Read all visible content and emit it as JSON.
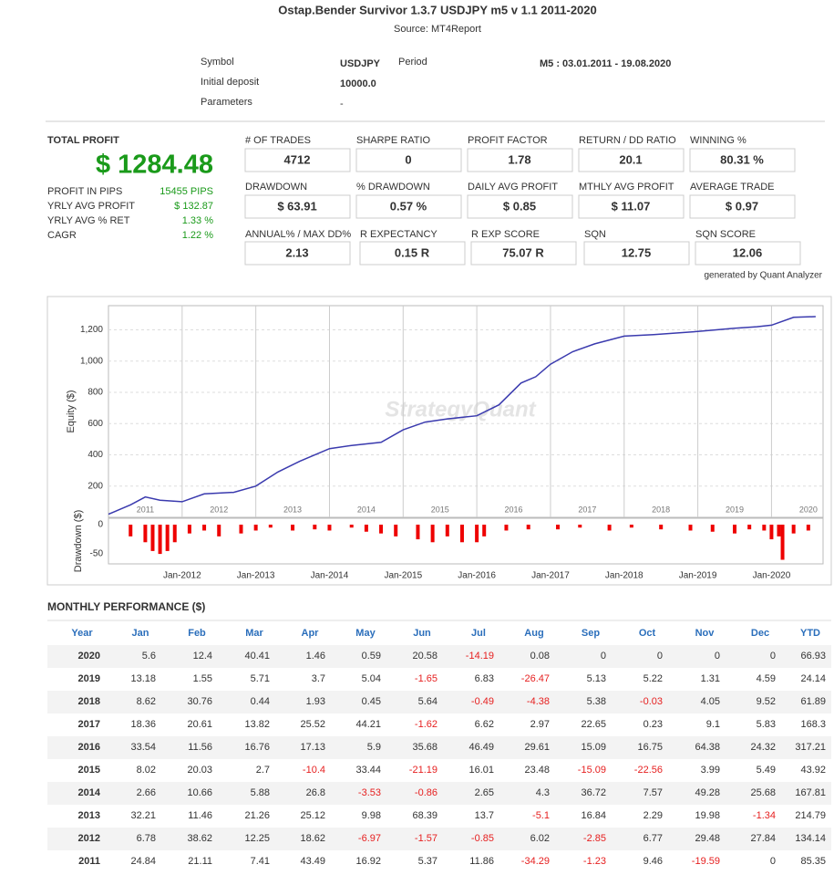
{
  "header": {
    "title": "Ostap.Bender Survivor 1.3.7 USDJPY m5 v 1.1 2011-2020",
    "source": "Source: MT4Report"
  },
  "info": {
    "symbol_label": "Symbol",
    "symbol": "USDJPY",
    "period_label": "Period",
    "period": "M5 : 03.01.2011 - 19.08.2020",
    "deposit_label": "Initial deposit",
    "deposit": "10000.0",
    "parameters_label": "Parameters",
    "parameters": "-"
  },
  "total": {
    "label": "TOTAL PROFIT",
    "value": "$ 1284.48"
  },
  "stats": [
    {
      "label": "PROFIT IN PIPS",
      "value": "15455 PIPS"
    },
    {
      "label": "YRLY AVG PROFIT",
      "value": "$ 132.87"
    },
    {
      "label": "YRLY AVG % RET",
      "value": "1.33 %"
    },
    {
      "label": "CAGR",
      "value": "1.22 %"
    }
  ],
  "boxes": [
    [
      {
        "label": "# OF TRADES",
        "value": "4712"
      },
      {
        "label": "SHARPE RATIO",
        "value": "0"
      },
      {
        "label": "PROFIT FACTOR",
        "value": "1.78"
      },
      {
        "label": "RETURN / DD RATIO",
        "value": "20.1"
      },
      {
        "label": "WINNING %",
        "value": "80.31 %"
      }
    ],
    [
      {
        "label": "DRAWDOWN",
        "value": "$ 63.91"
      },
      {
        "label": "% DRAWDOWN",
        "value": "0.57 %"
      },
      {
        "label": "DAILY AVG PROFIT",
        "value": "$ 0.85"
      },
      {
        "label": "MTHLY AVG PROFIT",
        "value": "$ 11.07"
      },
      {
        "label": "AVERAGE TRADE",
        "value": "$ 0.97"
      }
    ],
    [
      {
        "label": "ANNUAL% / MAX DD%",
        "value": "2.13"
      },
      {
        "label": "R EXPECTANCY",
        "value": "0.15 R"
      },
      {
        "label": "R EXP SCORE",
        "value": "75.07 R"
      },
      {
        "label": "SQN",
        "value": "12.75"
      },
      {
        "label": "SQN SCORE",
        "value": "12.06"
      }
    ]
  ],
  "generated": "generated by Quant Analyzer",
  "chart_data": [
    {
      "type": "line",
      "y_label": "Equity ($)",
      "watermark": "StrategyQuant",
      "color": "#3a3aae",
      "x": [
        2011.0,
        2011.3,
        2011.5,
        2011.7,
        2012.0,
        2012.3,
        2012.7,
        2013.0,
        2013.3,
        2013.6,
        2014.0,
        2014.3,
        2014.7,
        2015.0,
        2015.3,
        2015.6,
        2016.0,
        2016.3,
        2016.6,
        2016.8,
        2017.0,
        2017.3,
        2017.6,
        2018.0,
        2018.4,
        2019.0,
        2019.5,
        2019.8,
        2020.0,
        2020.3,
        2020.6
      ],
      "values": [
        20,
        80,
        130,
        110,
        100,
        150,
        160,
        200,
        290,
        360,
        440,
        460,
        480,
        560,
        610,
        630,
        650,
        720,
        860,
        900,
        980,
        1060,
        1110,
        1160,
        1170,
        1190,
        1210,
        1220,
        1230,
        1280,
        1285
      ],
      "xlim": [
        2011,
        2020.7
      ],
      "ylim": [
        0,
        1355
      ],
      "xticks": [
        {
          "value": 2011.5,
          "label": "2011"
        },
        {
          "value": 2012.5,
          "label": "2012"
        },
        {
          "value": 2013.5,
          "label": "2013"
        },
        {
          "value": 2014.5,
          "label": "2014"
        },
        {
          "value": 2015.5,
          "label": "2015"
        },
        {
          "value": 2016.5,
          "label": "2016"
        },
        {
          "value": 2017.5,
          "label": "2017"
        },
        {
          "value": 2018.5,
          "label": "2018"
        },
        {
          "value": 2019.5,
          "label": "2019"
        },
        {
          "value": 2020.5,
          "label": "2020"
        }
      ],
      "yticks": [
        200,
        400,
        600,
        800,
        {
          "value": 1000,
          "label": "1,000"
        },
        {
          "value": 1200,
          "label": "1,200"
        }
      ],
      "grid": true
    },
    {
      "type": "bar",
      "y_label": "Drawdown ($)",
      "color": "#ee0000",
      "x": [
        2011.3,
        2011.5,
        2011.6,
        2011.7,
        2011.8,
        2011.9,
        2012.1,
        2012.3,
        2012.5,
        2012.8,
        2013.0,
        2013.2,
        2013.5,
        2013.8,
        2014.0,
        2014.3,
        2014.5,
        2014.7,
        2014.9,
        2015.2,
        2015.4,
        2015.6,
        2015.8,
        2016.0,
        2016.1,
        2016.4,
        2016.7,
        2017.1,
        2017.4,
        2017.8,
        2018.1,
        2018.5,
        2018.9,
        2019.2,
        2019.5,
        2019.7,
        2019.9,
        2020.0,
        2020.1,
        2020.15,
        2020.3,
        2020.5
      ],
      "values": [
        -20,
        -30,
        -45,
        -50,
        -45,
        -30,
        -15,
        -10,
        -20,
        -15,
        -10,
        -5,
        -10,
        -8,
        -10,
        -5,
        -12,
        -15,
        -20,
        -25,
        -30,
        -20,
        -30,
        -30,
        -20,
        -10,
        -8,
        -8,
        -5,
        -10,
        -5,
        -8,
        -10,
        -12,
        -15,
        -8,
        -10,
        -25,
        -20,
        -60,
        -15,
        -10
      ],
      "xlim": [
        2011,
        2020.7
      ],
      "ylim": [
        -67,
        11
      ],
      "xticks": [
        {
          "value": 2012,
          "label": "Jan-2012"
        },
        {
          "value": 2013,
          "label": "Jan-2013"
        },
        {
          "value": 2014,
          "label": "Jan-2014"
        },
        {
          "value": 2015,
          "label": "Jan-2015"
        },
        {
          "value": 2016,
          "label": "Jan-2016"
        },
        {
          "value": 2017,
          "label": "Jan-2017"
        },
        {
          "value": 2018,
          "label": "Jan-2018"
        },
        {
          "value": 2019,
          "label": "Jan-2019"
        },
        {
          "value": 2020,
          "label": "Jan-2020"
        }
      ],
      "yticks": [
        0,
        -50
      ]
    }
  ],
  "monthly": {
    "title": "MONTHLY PERFORMANCE ($)",
    "header": [
      "Year",
      "Jan",
      "Feb",
      "Mar",
      "Apr",
      "May",
      "Jun",
      "Jul",
      "Aug",
      "Sep",
      "Oct",
      "Nov",
      "Dec",
      "YTD"
    ],
    "rows": [
      [
        2020,
        5.6,
        12.4,
        40.41,
        1.46,
        0.59,
        20.58,
        -14.19,
        0.08,
        0,
        0,
        0,
        0,
        66.93
      ],
      [
        2019,
        13.18,
        1.55,
        5.71,
        3.7,
        5.04,
        -1.65,
        6.83,
        -26.47,
        5.13,
        5.22,
        1.31,
        4.59,
        24.14
      ],
      [
        2018,
        8.62,
        30.76,
        0.44,
        1.93,
        0.45,
        5.64,
        -0.49,
        -4.38,
        5.38,
        -0.03,
        4.05,
        9.52,
        61.89
      ],
      [
        2017,
        18.36,
        20.61,
        13.82,
        25.52,
        44.21,
        -1.62,
        6.62,
        2.97,
        22.65,
        0.23,
        9.1,
        5.83,
        168.3
      ],
      [
        2016,
        33.54,
        11.56,
        16.76,
        17.13,
        5.9,
        35.68,
        46.49,
        29.61,
        15.09,
        16.75,
        64.38,
        24.32,
        317.21
      ],
      [
        2015,
        8.02,
        20.03,
        2.7,
        -10.4,
        33.44,
        -21.19,
        16.01,
        23.48,
        -15.09,
        -22.56,
        3.99,
        5.49,
        43.92
      ],
      [
        2014,
        2.66,
        10.66,
        5.88,
        26.8,
        -3.53,
        -0.86,
        2.65,
        4.3,
        36.72,
        7.57,
        49.28,
        25.68,
        167.81
      ],
      [
        2013,
        32.21,
        11.46,
        21.26,
        25.12,
        9.98,
        68.39,
        13.7,
        -5.1,
        16.84,
        2.29,
        19.98,
        -1.34,
        214.79
      ],
      [
        2012,
        6.78,
        38.62,
        12.25,
        18.62,
        -6.97,
        -1.57,
        -0.85,
        6.02,
        -2.85,
        6.77,
        29.48,
        27.84,
        134.14
      ],
      [
        2011,
        24.84,
        21.11,
        7.41,
        43.49,
        16.92,
        5.37,
        11.86,
        -34.29,
        -1.23,
        9.46,
        -19.59,
        0,
        85.35
      ]
    ]
  }
}
